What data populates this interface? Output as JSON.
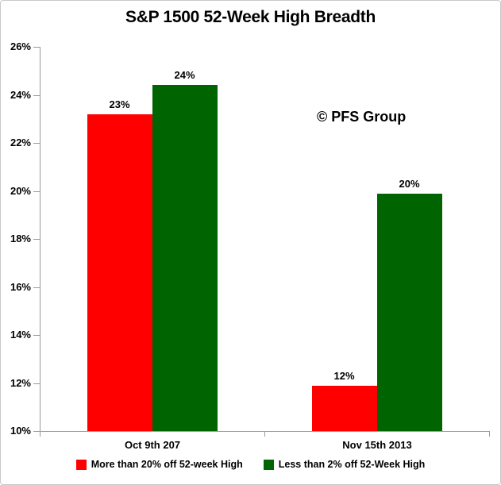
{
  "title": "S&P 1500 52-Week High Breadth",
  "watermark": "© PFS Group",
  "chart_data": {
    "type": "bar",
    "title": "S&P 1500 52-Week High Breadth",
    "annotation": "© PFS Group",
    "categories": [
      "Oct 9th 207",
      "Nov 15th 2013"
    ],
    "series": [
      {
        "name": "More than 20% off 52-week High",
        "color": "#ff0000",
        "values": [
          23.2,
          11.9
        ],
        "point_labels": [
          "23%",
          "12%"
        ]
      },
      {
        "name": "Less than 2% off 52-Week High",
        "color": "#006400",
        "values": [
          24.4,
          19.9
        ],
        "point_labels": [
          "24%",
          "20%"
        ]
      }
    ],
    "ylim": [
      10,
      26
    ],
    "yticks": [
      {
        "value": 26,
        "label": "26%"
      },
      {
        "value": 24,
        "label": "24%"
      },
      {
        "value": 22,
        "label": "22%"
      },
      {
        "value": 20,
        "label": "20%"
      },
      {
        "value": 18,
        "label": "18%"
      },
      {
        "value": 16,
        "label": "16%"
      },
      {
        "value": 14,
        "label": "14%"
      },
      {
        "value": 12,
        "label": "12%"
      },
      {
        "value": 10,
        "label": "10%"
      }
    ],
    "grid": false,
    "legend_position": "bottom",
    "axis_color": "#9a9a9a"
  }
}
